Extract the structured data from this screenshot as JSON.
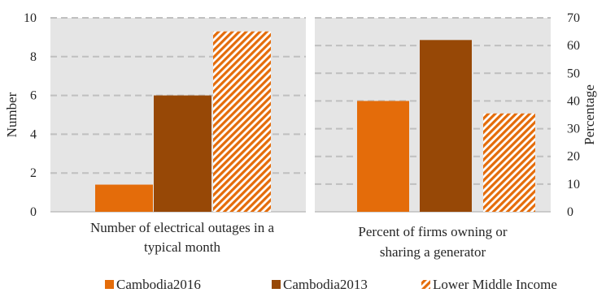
{
  "colors": {
    "cambodia2016": "#e46c0a",
    "cambodia2013": "#974806",
    "lower_middle_income": "#e46c0a",
    "plot_bg": "#e5e5e5",
    "grid": "#bfbfbf",
    "text": "#262626"
  },
  "legend": {
    "placement": "bottom",
    "items": [
      {
        "label": "Cambodia2016",
        "style": "solid",
        "color": "#e46c0a"
      },
      {
        "label": "Cambodia2013",
        "style": "solid",
        "color": "#974806"
      },
      {
        "label": "Lower Middle Income",
        "style": "hatched",
        "color": "#e46c0a"
      }
    ]
  },
  "chart_data": [
    {
      "type": "bar",
      "categories": [
        "Number of electrical outages in a typical month"
      ],
      "category_label_lines": [
        "Number of electrical outages in a",
        "typical month"
      ],
      "ylabel": "Number",
      "ylabel_position": "left",
      "ylim": [
        0,
        10
      ],
      "yticks": [
        0,
        2,
        4,
        6,
        8,
        10
      ],
      "grid": true,
      "series": [
        {
          "name": "Cambodia2016",
          "values": [
            1.4
          ]
        },
        {
          "name": "Cambodia2013",
          "values": [
            6.0
          ]
        },
        {
          "name": "Lower Middle Income",
          "values": [
            9.3
          ]
        }
      ]
    },
    {
      "type": "bar",
      "categories": [
        "Percent of firms owning or sharing a generator"
      ],
      "category_label_lines": [
        "Percent of firms owning or",
        "sharing a generator"
      ],
      "ylabel": "Percentage",
      "ylabel_position": "right",
      "ylim": [
        0,
        70
      ],
      "yticks": [
        0,
        10,
        20,
        30,
        40,
        50,
        60,
        70
      ],
      "grid": true,
      "series": [
        {
          "name": "Cambodia2016",
          "values": [
            40
          ]
        },
        {
          "name": "Cambodia2013",
          "values": [
            62
          ]
        },
        {
          "name": "Lower Middle Income",
          "values": [
            35.5
          ]
        }
      ]
    }
  ]
}
